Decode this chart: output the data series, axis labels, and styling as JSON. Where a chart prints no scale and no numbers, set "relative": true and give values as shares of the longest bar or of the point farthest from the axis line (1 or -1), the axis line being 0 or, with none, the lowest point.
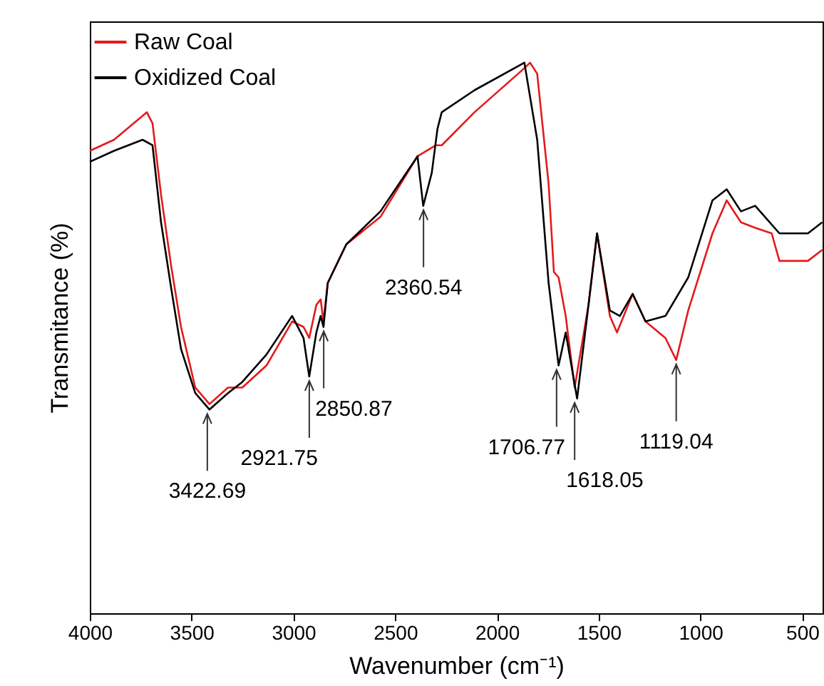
{
  "chart_data": {
    "type": "line",
    "relative": true,
    "xlabel": "Wavenumber (cm⁻¹)",
    "ylabel": "Transmitance (%)",
    "xlim": [
      4000,
      400
    ],
    "xticks": [
      4000,
      3500,
      3000,
      2500,
      2000,
      1500,
      1000,
      500
    ],
    "grid": false,
    "legend": "top left",
    "marker": "none",
    "line_style": "solid",
    "series": [
      {
        "name": "Raw Coal",
        "color": "#e41a1c",
        "x": [
          4000,
          3881,
          3720,
          3692,
          3650,
          3600,
          3552,
          3482,
          3412,
          3321,
          3251,
          3132,
          3006,
          2950,
          2922,
          2887,
          2866,
          2852,
          2831,
          2740,
          2572,
          2390,
          2300,
          2271,
          2110,
          1865,
          1837,
          1802,
          1746,
          1720,
          1697,
          1662,
          1618,
          1550,
          1508,
          1445,
          1410,
          1333,
          1270,
          1172,
          1119,
          1060,
          941,
          871,
          801,
          731,
          650,
          612,
          472,
          402
        ],
        "values": [
          0.84,
          0.86,
          0.91,
          0.89,
          0.76,
          0.63,
          0.52,
          0.41,
          0.38,
          0.41,
          0.41,
          0.45,
          0.53,
          0.52,
          0.5,
          0.56,
          0.57,
          0.53,
          0.6,
          0.67,
          0.72,
          0.83,
          0.85,
          0.85,
          0.91,
          0.99,
          1.0,
          0.98,
          0.78,
          0.62,
          0.61,
          0.54,
          0.41,
          0.56,
          0.69,
          0.54,
          0.51,
          0.58,
          0.53,
          0.5,
          0.46,
          0.55,
          0.69,
          0.75,
          0.71,
          0.7,
          0.69,
          0.64,
          0.64,
          0.66
        ]
      },
      {
        "name": "Oxidized Coal",
        "color": "#000000",
        "x": [
          4000,
          3881,
          3741,
          3692,
          3650,
          3600,
          3552,
          3482,
          3412,
          3321,
          3251,
          3132,
          3006,
          2950,
          2922,
          2887,
          2866,
          2852,
          2831,
          2740,
          2572,
          2390,
          2362,
          2320,
          2292,
          2271,
          2110,
          1865,
          1802,
          1746,
          1697,
          1662,
          1606,
          1550,
          1508,
          1445,
          1396,
          1333,
          1270,
          1172,
          1060,
          941,
          871,
          801,
          731,
          612,
          472,
          402
        ],
        "values": [
          0.82,
          0.84,
          0.86,
          0.85,
          0.71,
          0.59,
          0.48,
          0.4,
          0.37,
          0.4,
          0.42,
          0.47,
          0.54,
          0.5,
          0.43,
          0.51,
          0.54,
          0.52,
          0.6,
          0.67,
          0.73,
          0.83,
          0.74,
          0.8,
          0.88,
          0.91,
          0.95,
          1.0,
          0.86,
          0.6,
          0.45,
          0.51,
          0.39,
          0.56,
          0.69,
          0.55,
          0.54,
          0.58,
          0.53,
          0.54,
          0.61,
          0.75,
          0.77,
          0.73,
          0.74,
          0.69,
          0.69,
          0.71
        ]
      }
    ],
    "annotations": [
      {
        "text": "3422.69",
        "x": 3422.69,
        "y": 0.37
      },
      {
        "text": "2921.75",
        "x": 2921.75,
        "y": 0.43
      },
      {
        "text": "2850.87",
        "x": 2850.87,
        "y": 0.52
      },
      {
        "text": "2360.54",
        "x": 2360.54,
        "y": 0.74
      },
      {
        "text": "1706.77",
        "x": 1706.77,
        "y": 0.45
      },
      {
        "text": "1618.05",
        "x": 1618.05,
        "y": 0.39
      },
      {
        "text": "1119.04",
        "x": 1119.04,
        "y": 0.46
      }
    ]
  }
}
